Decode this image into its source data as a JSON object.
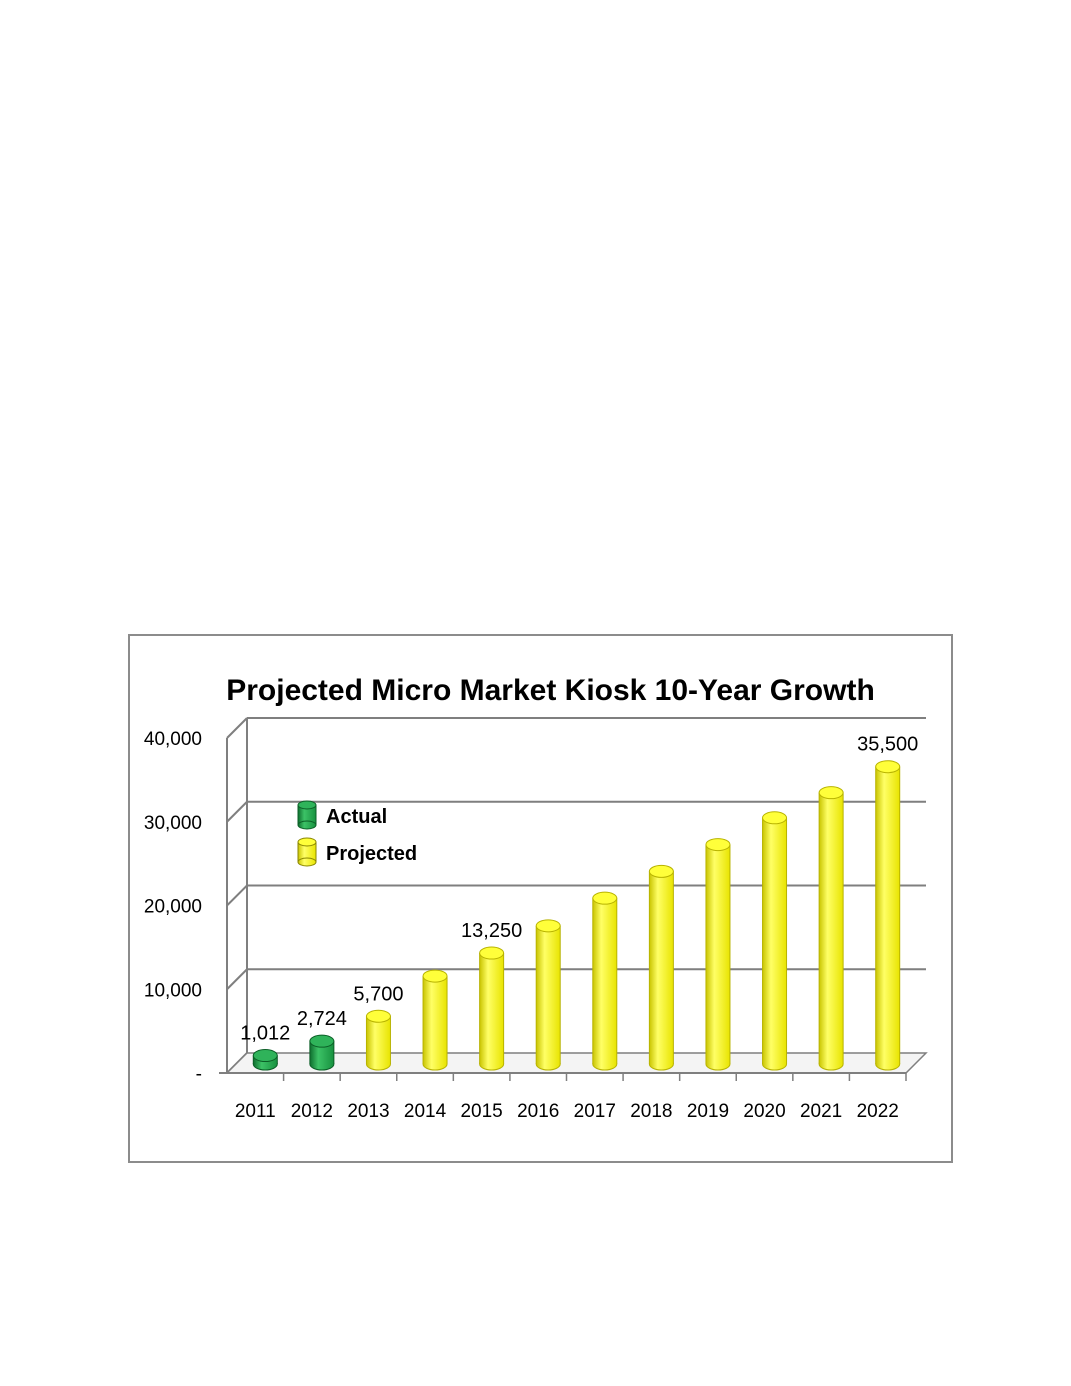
{
  "chart_data": {
    "type": "bar",
    "title": "Projected Micro Market Kiosk 10-Year Growth",
    "xlabel": "",
    "ylabel": "",
    "categories": [
      "2011",
      "2012",
      "2013",
      "2014",
      "2015",
      "2016",
      "2017",
      "2018",
      "2019",
      "2020",
      "2021",
      "2022"
    ],
    "series": [
      {
        "name": "Actual",
        "color": "#1a9e45",
        "values": [
          1012,
          2724,
          null,
          null,
          null,
          null,
          null,
          null,
          null,
          null,
          null,
          null
        ]
      },
      {
        "name": "Projected",
        "color": "#f5f200",
        "values": [
          null,
          null,
          5700,
          10500,
          13250,
          16500,
          19800,
          23000,
          26200,
          29400,
          32400,
          35500
        ]
      }
    ],
    "data_labels": [
      {
        "category": "2011",
        "text": "1,012"
      },
      {
        "category": "2012",
        "text": "2,724"
      },
      {
        "category": "2013",
        "text": "5,700"
      },
      {
        "category": "2015",
        "text": "13,250"
      },
      {
        "category": "2022",
        "text": "35,500"
      }
    ],
    "y_ticks": [
      {
        "value": 0,
        "label": "-"
      },
      {
        "value": 10000,
        "label": "10,000"
      },
      {
        "value": 20000,
        "label": "20,000"
      },
      {
        "value": 30000,
        "label": "30,000"
      },
      {
        "value": 40000,
        "label": "40,000"
      }
    ],
    "ylim": [
      0,
      40000
    ],
    "grid": true,
    "legend_position": "upper-left",
    "style": "3d-cylinder"
  }
}
